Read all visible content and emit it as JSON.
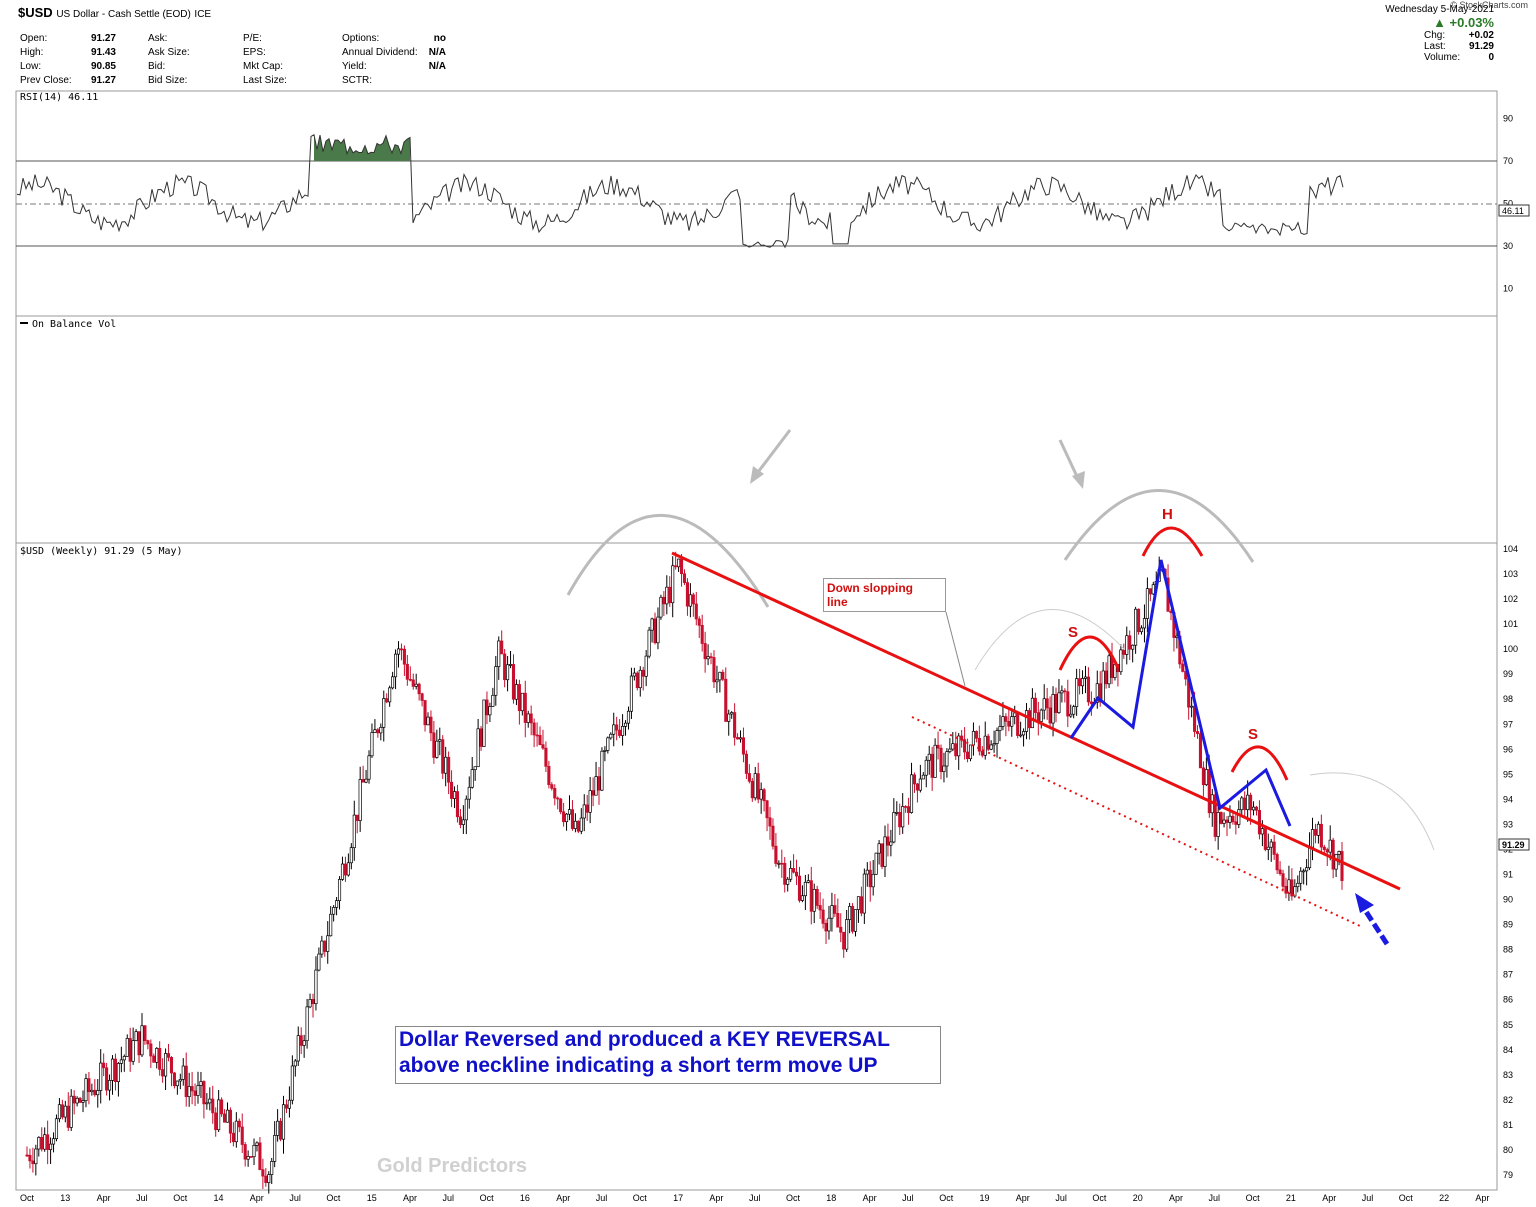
{
  "header": {
    "symbol": "$USD",
    "name": "US Dollar - Cash Settle (EOD)",
    "exchange": "ICE",
    "copyright": "© StockCharts.com",
    "date": "Wednesday  5-May-2021",
    "change_pct": "▲ +0.03%",
    "quote_rows": [
      {
        "label": "Open:",
        "value": "91.27"
      },
      {
        "label": "High:",
        "value": "91.43"
      },
      {
        "label": "Low:",
        "value": "90.85"
      },
      {
        "label": "Prev Close:",
        "value": "91.27"
      }
    ],
    "ask_rows": [
      {
        "label": "Ask:",
        "value": ""
      },
      {
        "label": "Ask Size:",
        "value": ""
      },
      {
        "label": "Bid:",
        "value": ""
      },
      {
        "label": "Bid Size:",
        "value": ""
      }
    ],
    "pe_rows": [
      {
        "label": "P/E:",
        "value": ""
      },
      {
        "label": "EPS:",
        "value": ""
      },
      {
        "label": "Mkt Cap:",
        "value": ""
      },
      {
        "label": "Last Size:",
        "value": ""
      }
    ],
    "opt_rows": [
      {
        "label": "Options:",
        "value": "no"
      },
      {
        "label": "Annual Dividend:",
        "value": "N/A"
      },
      {
        "label": "Yield:",
        "value": "N/A"
      },
      {
        "label": "SCTR:",
        "value": ""
      }
    ],
    "right_rows": [
      {
        "label": "Chg:",
        "value": "+0.02"
      },
      {
        "label": "Last:",
        "value": "91.29"
      },
      {
        "label": "Volume:",
        "value": "0"
      }
    ]
  },
  "rsi_panel": {
    "label": "RSI(14) 46.11",
    "last_value_tag": "46.11",
    "ticks": [
      "90",
      "70",
      "50",
      "30",
      "10"
    ],
    "tick_values": [
      90,
      70,
      50,
      30,
      10
    ],
    "overbought": 70,
    "oversold": 30,
    "mid": 50
  },
  "obv_panel": {
    "label": "On Balance Vol"
  },
  "price_panel": {
    "label": "$USD (Weekly) 91.29 (5 May)",
    "last_tag": "91.29",
    "y_ticks": [
      104,
      103,
      102,
      101,
      100,
      99,
      98,
      97,
      96,
      95,
      94,
      93,
      92,
      91,
      90,
      89,
      88,
      87,
      86,
      85,
      84,
      83,
      82,
      81,
      80,
      79
    ],
    "x_ticks": [
      "Oct",
      "13",
      "Apr",
      "Jul",
      "Oct",
      "14",
      "Apr",
      "Jul",
      "Oct",
      "15",
      "Apr",
      "Jul",
      "Oct",
      "16",
      "Apr",
      "Jul",
      "Oct",
      "17",
      "Apr",
      "Jul",
      "Oct",
      "18",
      "Apr",
      "Jul",
      "Oct",
      "19",
      "Apr",
      "Jul",
      "Oct",
      "20",
      "Apr",
      "Jul",
      "Oct",
      "21",
      "Apr",
      "Jul",
      "Oct",
      "22",
      "Apr"
    ]
  },
  "annotations": {
    "down_slope_note": [
      "Down slopping",
      "line"
    ],
    "key_reversal_text": [
      "Dollar Reversed and produced a KEY REVERSAL",
      "above neckline indicating a short term move UP"
    ],
    "s_left": "S",
    "head": "H",
    "s_right": "S",
    "watermark": "Gold Predictors"
  },
  "colors": {
    "up_candle": "#000000",
    "down_candle": "#c8102e",
    "trendline": "#e81010",
    "pattern_line": "#1a1ae0",
    "rsi_fill": "#4a7a4a"
  },
  "chart_data": {
    "type": "candlestick",
    "title": "$USD (Weekly) 91.29 (5 May)",
    "ylim": [
      78.5,
      104.3
    ],
    "x_range": [
      "2012-10",
      "2022-05"
    ],
    "key_points": [
      {
        "date": "2012-10",
        "close": 79.8
      },
      {
        "date": "2013-07",
        "close": 84.5
      },
      {
        "date": "2014-05",
        "close": 79.2
      },
      {
        "date": "2015-03",
        "close": 100.2
      },
      {
        "date": "2015-08",
        "close": 93.5
      },
      {
        "date": "2015-11",
        "close": 99.8
      },
      {
        "date": "2016-05",
        "close": 92.5
      },
      {
        "date": "2017-01",
        "close": 103.3
      },
      {
        "date": "2017-09",
        "close": 91.5
      },
      {
        "date": "2018-02",
        "close": 88.6
      },
      {
        "date": "2018-08",
        "close": 95.2
      },
      {
        "date": "2019-05",
        "close": 97.5
      },
      {
        "date": "2019-10",
        "close": 98.5
      },
      {
        "date": "2020-03",
        "close": 102.8
      },
      {
        "date": "2020-07",
        "close": 93.2
      },
      {
        "date": "2020-10",
        "close": 93.8
      },
      {
        "date": "2021-01",
        "close": 89.9
      },
      {
        "date": "2021-03",
        "close": 93.0
      },
      {
        "date": "2021-05",
        "close": 91.29
      }
    ]
  }
}
